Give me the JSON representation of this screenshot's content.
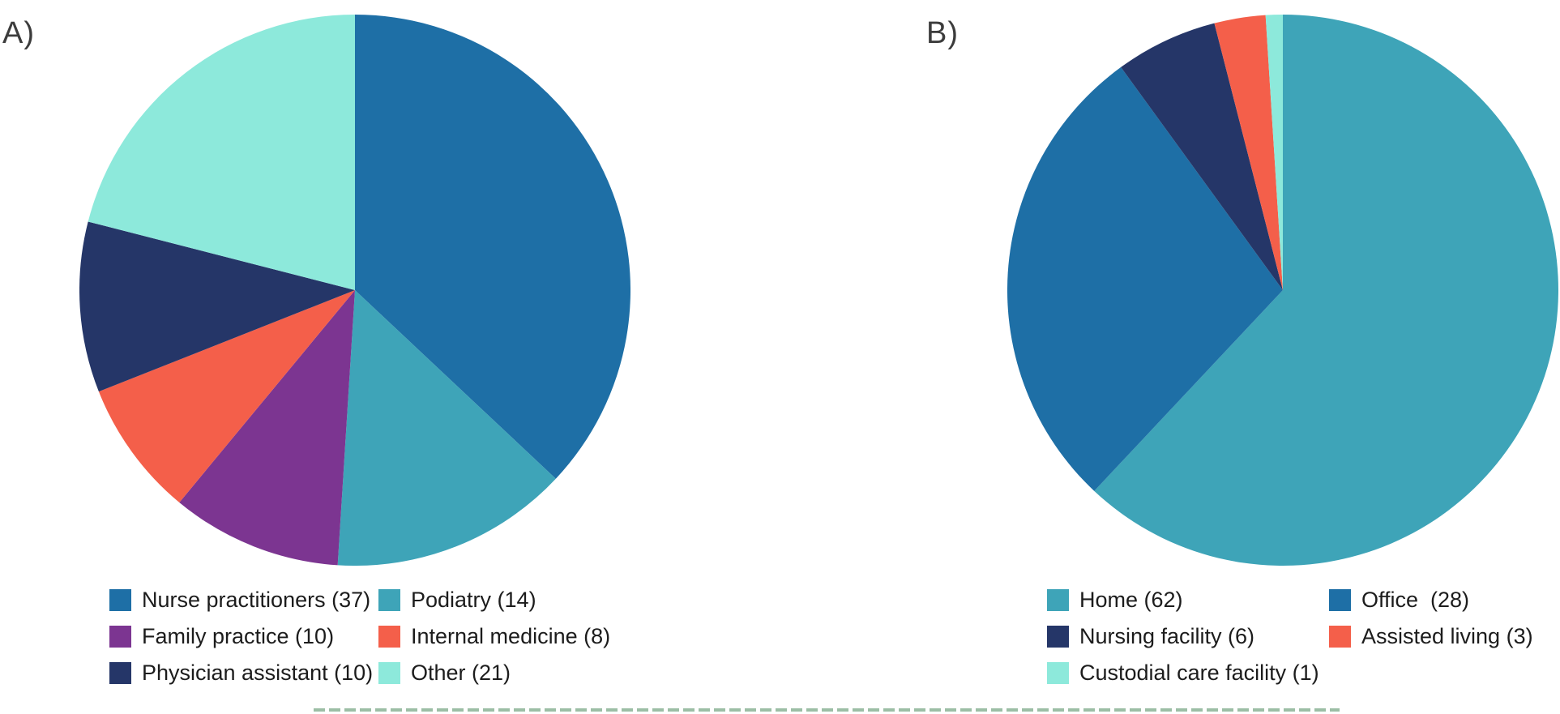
{
  "chart_data": [
    {
      "panel": "A)",
      "type": "pie",
      "start_angle_deg": 0,
      "direction": "clockwise",
      "categories": [
        "Nurse practitioners",
        "Podiatry",
        "Family practice",
        "Internal medicine",
        "Physician assistant",
        "Other"
      ],
      "values": [
        37,
        14,
        10,
        8,
        10,
        21
      ],
      "colors": [
        "#1E6FA6",
        "#3EA4B8",
        "#7C3591",
        "#F45F4A",
        "#253668",
        "#8DE9DB"
      ],
      "legend": {
        "position": "below-chart",
        "columns": [
          [
            {
              "text": "Nurse practitioners (37)",
              "color": "#1E6FA6"
            },
            {
              "text": "Family practice (10)",
              "color": "#7C3591"
            },
            {
              "text": "Physician assistant (10)",
              "color": "#253668"
            }
          ],
          [
            {
              "text": "Podiatry (14)",
              "color": "#3EA4B8"
            },
            {
              "text": "Internal medicine (8)",
              "color": "#F45F4A"
            },
            {
              "text": "Other (21)",
              "color": "#8DE9DB"
            }
          ]
        ]
      }
    },
    {
      "panel": "B)",
      "type": "pie",
      "start_angle_deg": 0,
      "direction": "clockwise",
      "categories": [
        "Home",
        "Office",
        "Nursing facility",
        "Assisted living",
        "Custodial care facility"
      ],
      "values": [
        62,
        28,
        6,
        3,
        1
      ],
      "colors": [
        "#3EA4B8",
        "#1E6FA6",
        "#253668",
        "#F45F4A",
        "#8DE9DB"
      ],
      "legend": {
        "position": "below-chart",
        "columns": [
          [
            {
              "text": "Home (62)",
              "color": "#3EA4B8"
            },
            {
              "text": "Nursing facility (6)",
              "color": "#253668"
            },
            {
              "text": "Custodial care facility (1)",
              "color": "#8DE9DB"
            }
          ],
          [
            {
              "text": "Office  (28)",
              "color": "#1E6FA6"
            },
            {
              "text": "Assisted living (3)",
              "color": "#F45F4A"
            }
          ]
        ]
      }
    }
  ],
  "decorations": {
    "dashed_line_color": "#9cbea5"
  },
  "text_colors": {
    "panel_label": "#3c3c3c",
    "legend_label": "#1c1c1c"
  }
}
